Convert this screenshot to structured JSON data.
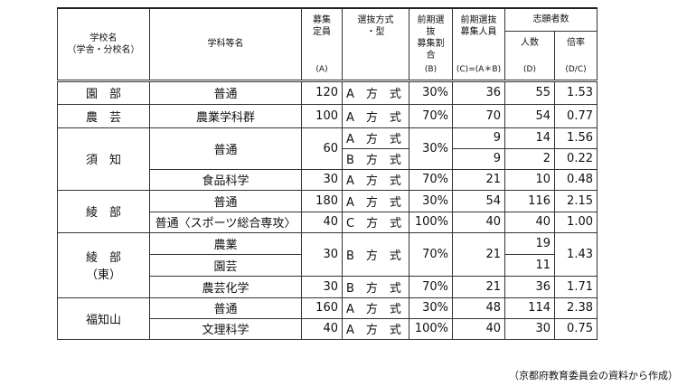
{
  "header": {
    "school": "学校名",
    "school_sub": "（学舎・分校名）",
    "course": "学科等名",
    "capacity": "募集\n定員",
    "capacity_sub": "(A)",
    "method": "選抜方式\n・型",
    "ratio": "前期選抜\n募集割合",
    "ratio_sub": "(B)",
    "early": "前期選抜\n募集人員",
    "early_sub": "(C)=(A＊B)",
    "applicants_group": "志願者数",
    "applicants": "人数",
    "applicants_sub": "(D)",
    "rate": "倍率",
    "rate_sub": "(D/C)"
  },
  "rows": [
    {
      "school": "園　部",
      "course": "普通",
      "capacity": "120",
      "method": "A　方　式",
      "ratio": "30%",
      "early": "36",
      "applicants": "55",
      "rate": "1.53"
    },
    {
      "school": "農　芸",
      "course": "農業学科群",
      "capacity": "100",
      "method": "A　方　式",
      "ratio": "70%",
      "early": "70",
      "applicants": "54",
      "rate": "0.77"
    },
    {
      "school": "須　知",
      "course": "普通",
      "capacity": "60",
      "method": "A　方　式",
      "ratio": "30%",
      "early": "9",
      "applicants": "14",
      "rate": "1.56"
    },
    {
      "method": "B　方　式",
      "early": "9",
      "applicants": "2",
      "rate": "0.22"
    },
    {
      "course": "食品科学",
      "capacity": "30",
      "method": "A　方　式",
      "ratio": "70%",
      "early": "21",
      "applicants": "10",
      "rate": "0.48"
    },
    {
      "school": "綾　部",
      "course": "普通",
      "capacity": "180",
      "method": "A　方　式",
      "ratio": "30%",
      "early": "54",
      "applicants": "116",
      "rate": "2.15"
    },
    {
      "course": "普通〈スポーツ総合専攻〉",
      "capacity": "40",
      "method": "C　方　式",
      "ratio": "100%",
      "early": "40",
      "applicants": "40",
      "rate": "1.00"
    },
    {
      "school": "綾　部\n（東）",
      "course": "農業",
      "capacity": "30",
      "method": "B　方　式",
      "ratio": "70%",
      "early": "21",
      "applicants": "19",
      "rate": "1.43"
    },
    {
      "course": "園芸",
      "applicants": "11"
    },
    {
      "course": "農芸化学",
      "capacity": "30",
      "method": "B　方　式",
      "ratio": "70%",
      "early": "21",
      "applicants": "36",
      "rate": "1.71"
    },
    {
      "school": "福知山",
      "course": "普通",
      "capacity": "160",
      "method": "A　方　式",
      "ratio": "30%",
      "early": "48",
      "applicants": "114",
      "rate": "2.38"
    },
    {
      "course": "文理科学",
      "capacity": "40",
      "method": "A　方　式",
      "ratio": "100%",
      "early": "40",
      "applicants": "30",
      "rate": "0.75"
    }
  ],
  "footer": "（京都府教育委員会の資料から作成）"
}
